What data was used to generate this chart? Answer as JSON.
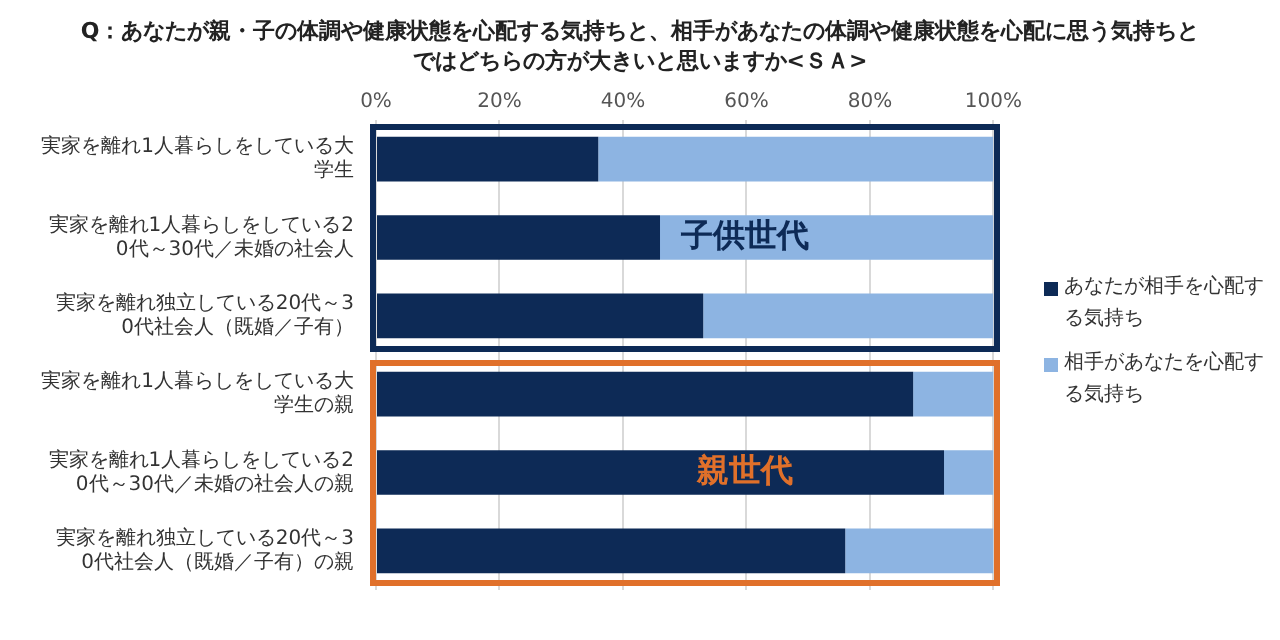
{
  "chart_data": {
    "type": "bar",
    "orientation": "horizontal",
    "stacked": true,
    "title": "Q：あなたが親・子の体調や健康状態を心配する気持ちと、相手があなたの体調や健康状態を心配に思う気持ちとではどちらの方が大きいと思いますか<ＳＡ>",
    "categories": [
      "実家を離れ1人暮らしをしている大学生",
      "実家を離れ1人暮らしをしている20代～30代／未婚の社会人",
      "実家を離れ独立している20代～30代社会人（既婚／子有）",
      "実家を離れ1人暮らしをしている大学生の親",
      "実家を離れ1人暮らしをしている20代～30代／未婚の社会人の親",
      "実家を離れ独立している20代～30代社会人（既婚／子有）の親"
    ],
    "series": [
      {
        "name": "あなたが相手を心配する気持ち",
        "color": "#0d2a56",
        "values": [
          36,
          46,
          53,
          87,
          92,
          76
        ]
      },
      {
        "name": "相手があなたを心配する気持ち",
        "color": "#8db4e2",
        "values": [
          64,
          54,
          47,
          13,
          8,
          24
        ]
      }
    ],
    "xlim": [
      0,
      100
    ],
    "xticks": [
      {
        "value": 0,
        "label": "0%"
      },
      {
        "value": 20,
        "label": "20%"
      },
      {
        "value": 40,
        "label": "40%"
      },
      {
        "value": 60,
        "label": "60%"
      },
      {
        "value": 80,
        "label": "80%"
      },
      {
        "value": 100,
        "label": "100%"
      }
    ],
    "grid": "x",
    "legend": "right",
    "annotations": [
      "子供世代",
      "親世代"
    ]
  }
}
